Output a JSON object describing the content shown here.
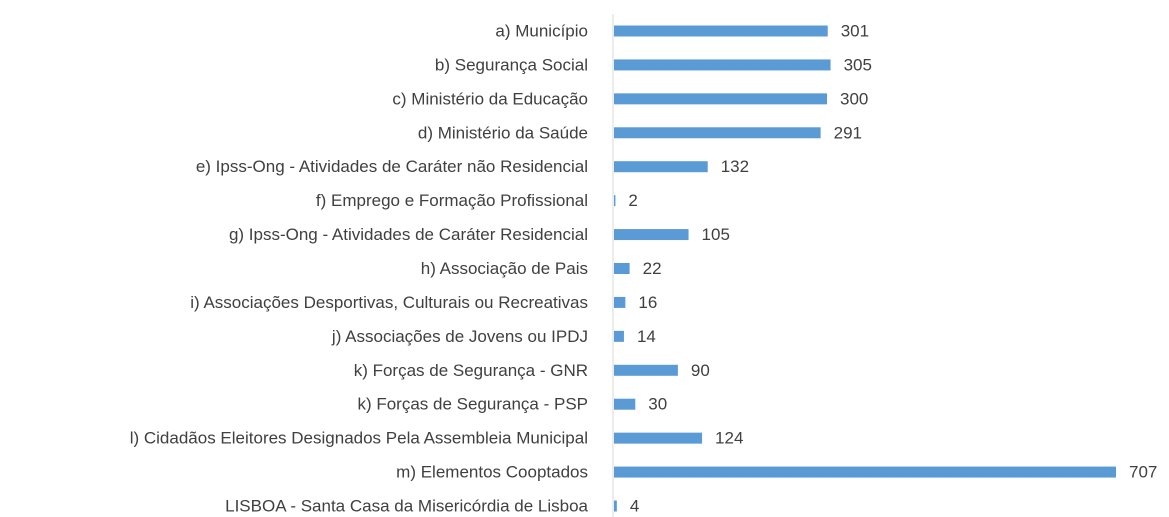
{
  "chart_data": {
    "type": "hbar",
    "categories": [
      "a) Município",
      "b) Segurança Social",
      "c) Ministério da Educação",
      "d) Ministério da Saúde",
      "e) Ipss-Ong - Atividades de Caráter não Residencial",
      "f) Emprego e Formação Profissional",
      "g) Ipss-Ong - Atividades de Caráter Residencial",
      "h) Associação de Pais",
      "i) Associações Desportivas, Culturais ou Recreativas",
      "j) Associações de Jovens ou IPDJ",
      "k) Forças de Segurança - GNR",
      "k) Forças de Segurança - PSP",
      "l) Cidadãos Eleitores Designados Pela Assembleia Municipal",
      "m) Elementos Cooptados",
      "LISBOA - Santa Casa da Misericórdia de Lisboa"
    ],
    "values": [
      301,
      305,
      300,
      291,
      132,
      2,
      105,
      22,
      16,
      14,
      90,
      30,
      124,
      707,
      4
    ],
    "color": "#5b9bd5"
  }
}
